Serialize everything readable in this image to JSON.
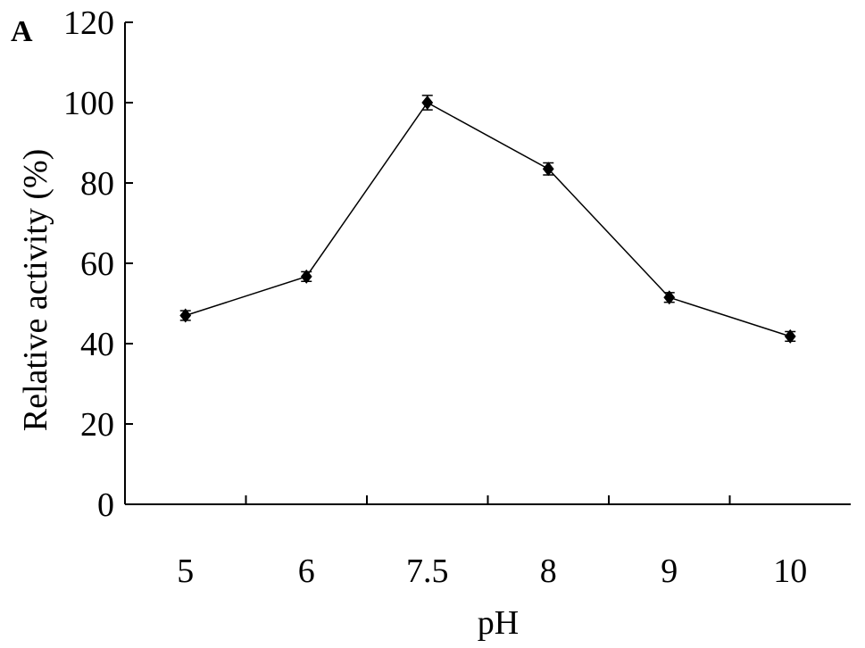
{
  "panel_label": "A",
  "chart_data": {
    "type": "line",
    "title": "",
    "xlabel": "pH",
    "ylabel": "Relative activity (%)",
    "categories": [
      "5",
      "6",
      "7.5",
      "8",
      "9",
      "10"
    ],
    "series": [
      {
        "values": [
          47,
          56.7,
          100,
          83.5,
          51.5,
          41.8
        ],
        "error": [
          1.2,
          1.2,
          1.8,
          1.5,
          1.2,
          1.2
        ]
      }
    ],
    "ylim": [
      0,
      120
    ],
    "yticks": [
      0,
      20,
      40,
      60,
      80,
      100,
      120
    ],
    "grid": false,
    "legend": "none",
    "marker": "diamond",
    "colors": {
      "line": "#000000",
      "marker": "#000000",
      "axis": "#000000"
    }
  }
}
